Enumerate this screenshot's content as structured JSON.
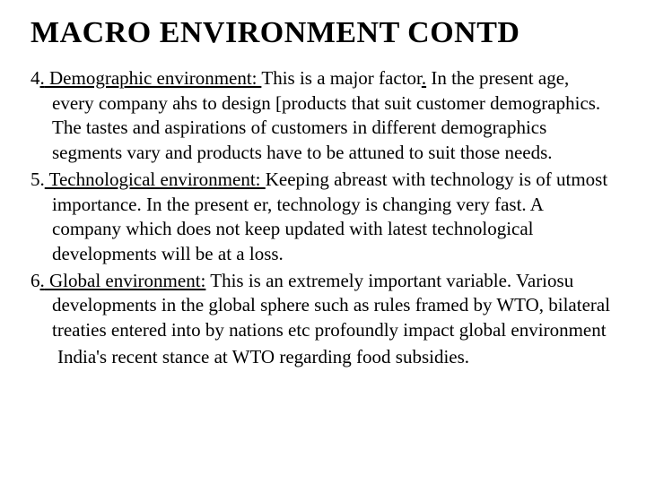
{
  "title": "MACRO ENVIRONMENT CONTD",
  "items": [
    {
      "num": "4",
      "heading": " Demographic environment: ",
      "lead": "This is a major factor",
      "rest": " In the present age, every company ahs to design [products that suit customer demographics. The tastes and aspirations of customers in different demographics segments vary and products have to be attuned to suit those needs."
    },
    {
      "num": "5",
      "heading": " Technological environment: ",
      "lead": "",
      "rest": "Keeping abreast with technology is of utmost importance. In the present er, technology is changing very fast. A company which does not keep updated with latest technological developments will be at a loss."
    },
    {
      "num": "6",
      "heading": " Global environment:",
      "lead": "",
      "rest": " This is an extremely important variable. Variosu developments in the global sphere such as rules framed by WTO, bilateral treaties entered into by nations etc profoundly impact global environment"
    }
  ],
  "footer": "India's recent stance at WTO regarding food subsidies."
}
